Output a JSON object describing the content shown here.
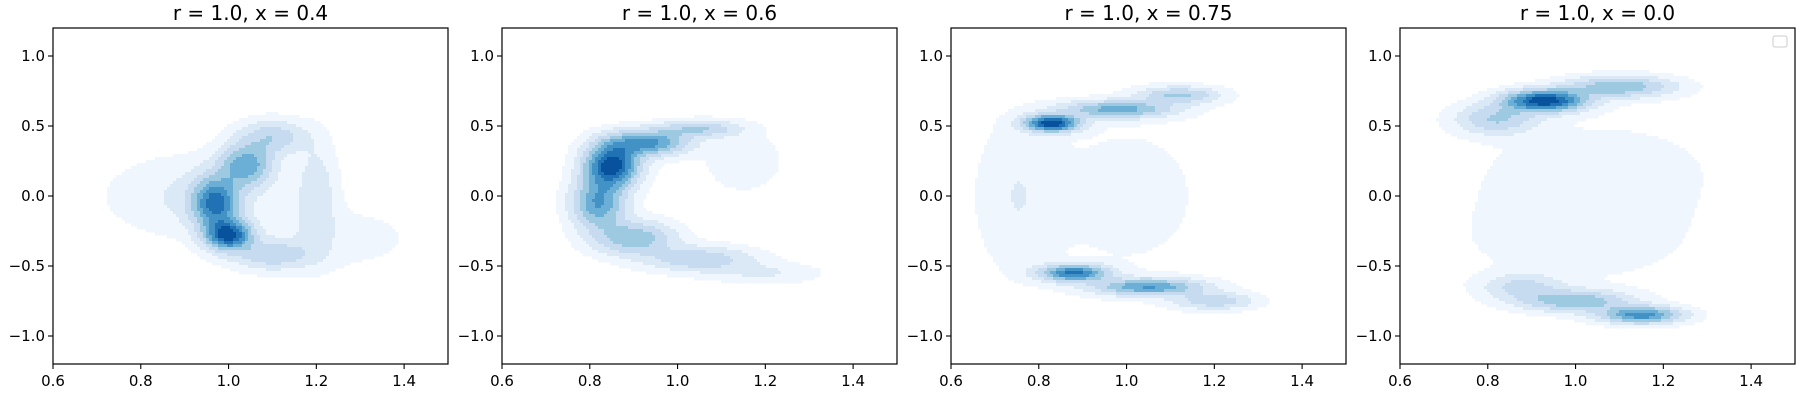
{
  "chart_data": [
    {
      "type": "kde_contour",
      "title": "r = 1.0, x = 0.4",
      "xlim": [
        0.6,
        1.5
      ],
      "ylim": [
        -1.2,
        1.2
      ],
      "xticks": [
        0.6,
        0.8,
        1.0,
        1.2,
        1.4
      ],
      "yticks": [
        -1.0,
        -0.5,
        0.0,
        0.5,
        1.0
      ],
      "xtick_labels": [
        "0.6",
        "0.8",
        "1.0",
        "1.2",
        "1.4"
      ],
      "ytick_labels": [
        "−1.0",
        "−0.5",
        "0.0",
        "0.5",
        "1.0"
      ],
      "legend": "",
      "density": [
        {
          "x": 1.0,
          "y": -0.28,
          "sx": 0.035,
          "sy": 0.07,
          "w": 0.9
        },
        {
          "x": 0.97,
          "y": -0.05,
          "sx": 0.035,
          "sy": 0.12,
          "w": 0.75
        },
        {
          "x": 1.04,
          "y": 0.22,
          "sx": 0.04,
          "sy": 0.1,
          "w": 0.55
        },
        {
          "x": 1.1,
          "y": 0.42,
          "sx": 0.05,
          "sy": 0.08,
          "w": 0.3
        },
        {
          "x": 1.1,
          "y": -0.42,
          "sx": 0.06,
          "sy": 0.07,
          "w": 0.3
        },
        {
          "x": 1.2,
          "y": 0.0,
          "sx": 0.03,
          "sy": 0.25,
          "w": 0.18
        },
        {
          "x": 0.92,
          "y": 0.0,
          "sx": 0.12,
          "sy": 0.18,
          "w": 0.12
        },
        {
          "x": 1.25,
          "y": -0.3,
          "sx": 0.12,
          "sy": 0.15,
          "w": 0.06
        }
      ]
    },
    {
      "type": "kde_contour",
      "title": "r = 1.0, x = 0.6",
      "xlim": [
        0.6,
        1.5
      ],
      "ylim": [
        -1.2,
        1.2
      ],
      "xticks": [
        0.6,
        0.8,
        1.0,
        1.2,
        1.4
      ],
      "yticks": [
        -1.0,
        -0.5,
        0.0,
        0.5,
        1.0
      ],
      "xtick_labels": [
        "0.6",
        "0.8",
        "1.0",
        "1.2",
        "1.4"
      ],
      "ytick_labels": [
        "−1.0",
        "−0.5",
        "0.0",
        "0.5",
        "1.0"
      ],
      "legend": "",
      "density": [
        {
          "x": 0.85,
          "y": 0.22,
          "sx": 0.04,
          "sy": 0.1,
          "w": 0.9
        },
        {
          "x": 0.93,
          "y": 0.38,
          "sx": 0.06,
          "sy": 0.06,
          "w": 0.6
        },
        {
          "x": 0.82,
          "y": -0.05,
          "sx": 0.04,
          "sy": 0.12,
          "w": 0.55
        },
        {
          "x": 0.9,
          "y": -0.3,
          "sx": 0.06,
          "sy": 0.08,
          "w": 0.4
        },
        {
          "x": 1.05,
          "y": -0.45,
          "sx": 0.08,
          "sy": 0.06,
          "w": 0.28
        },
        {
          "x": 1.05,
          "y": 0.48,
          "sx": 0.06,
          "sy": 0.04,
          "w": 0.3
        },
        {
          "x": 1.2,
          "y": -0.55,
          "sx": 0.08,
          "sy": 0.05,
          "w": 0.1
        },
        {
          "x": 1.15,
          "y": 0.25,
          "sx": 0.06,
          "sy": 0.15,
          "w": 0.07
        }
      ]
    },
    {
      "type": "kde_contour",
      "title": "r = 1.0, x = 0.75",
      "xlim": [
        0.6,
        1.5
      ],
      "ylim": [
        -1.2,
        1.2
      ],
      "xticks": [
        0.6,
        0.8,
        1.0,
        1.2,
        1.4
      ],
      "yticks": [
        -1.0,
        -0.5,
        0.0,
        0.5,
        1.0
      ],
      "xtick_labels": [
        "0.6",
        "0.8",
        "1.0",
        "1.2",
        "1.4"
      ],
      "ytick_labels": [
        "−1.0",
        "−0.5",
        "0.0",
        "0.5",
        "1.0"
      ],
      "legend": "",
      "density": [
        {
          "x": 0.83,
          "y": 0.52,
          "sx": 0.04,
          "sy": 0.04,
          "w": 0.85
        },
        {
          "x": 0.98,
          "y": 0.62,
          "sx": 0.08,
          "sy": 0.04,
          "w": 0.45
        },
        {
          "x": 1.12,
          "y": 0.72,
          "sx": 0.06,
          "sy": 0.04,
          "w": 0.3
        },
        {
          "x": 0.88,
          "y": -0.55,
          "sx": 0.05,
          "sy": 0.04,
          "w": 0.65
        },
        {
          "x": 1.05,
          "y": -0.65,
          "sx": 0.08,
          "sy": 0.04,
          "w": 0.5
        },
        {
          "x": 1.2,
          "y": -0.75,
          "sx": 0.06,
          "sy": 0.04,
          "w": 0.25
        },
        {
          "x": 0.75,
          "y": 0.0,
          "sx": 0.06,
          "sy": 0.35,
          "w": 0.08
        },
        {
          "x": 1.0,
          "y": 0.0,
          "sx": 0.15,
          "sy": 0.45,
          "w": 0.04
        }
      ]
    },
    {
      "type": "kde_contour",
      "title": "r = 1.0, x = 0.0",
      "xlim": [
        0.6,
        1.5
      ],
      "ylim": [
        -1.2,
        1.2
      ],
      "xticks": [
        0.6,
        0.8,
        1.0,
        1.2,
        1.4
      ],
      "yticks": [
        -1.0,
        -0.5,
        0.0,
        0.5,
        1.0
      ],
      "xtick_labels": [
        "0.6",
        "0.8",
        "1.0",
        "1.2",
        "1.4"
      ],
      "ytick_labels": [
        "−1.0",
        "−0.5",
        "0.0",
        "0.5",
        "1.0"
      ],
      "legend": "top-right (empty)",
      "density": [
        {
          "x": 0.93,
          "y": 0.68,
          "sx": 0.06,
          "sy": 0.05,
          "w": 0.9
        },
        {
          "x": 1.1,
          "y": 0.78,
          "sx": 0.08,
          "sy": 0.05,
          "w": 0.4
        },
        {
          "x": 0.82,
          "y": 0.55,
          "sx": 0.06,
          "sy": 0.07,
          "w": 0.3
        },
        {
          "x": 1.15,
          "y": -0.85,
          "sx": 0.06,
          "sy": 0.04,
          "w": 0.6
        },
        {
          "x": 1.0,
          "y": -0.75,
          "sx": 0.08,
          "sy": 0.05,
          "w": 0.4
        },
        {
          "x": 0.88,
          "y": -0.65,
          "sx": 0.06,
          "sy": 0.06,
          "w": 0.22
        },
        {
          "x": 1.05,
          "y": 0.2,
          "sx": 0.2,
          "sy": 0.25,
          "w": 0.05
        },
        {
          "x": 1.0,
          "y": -0.3,
          "sx": 0.2,
          "sy": 0.25,
          "w": 0.05
        }
      ]
    }
  ],
  "colors": {
    "levels": [
      "#ffffff",
      "#f0f6fd",
      "#dbe9f6",
      "#c6dbef",
      "#9ecae1",
      "#6baed6",
      "#4292c6",
      "#2171b5",
      "#08519c"
    ],
    "axes": "#000000"
  }
}
